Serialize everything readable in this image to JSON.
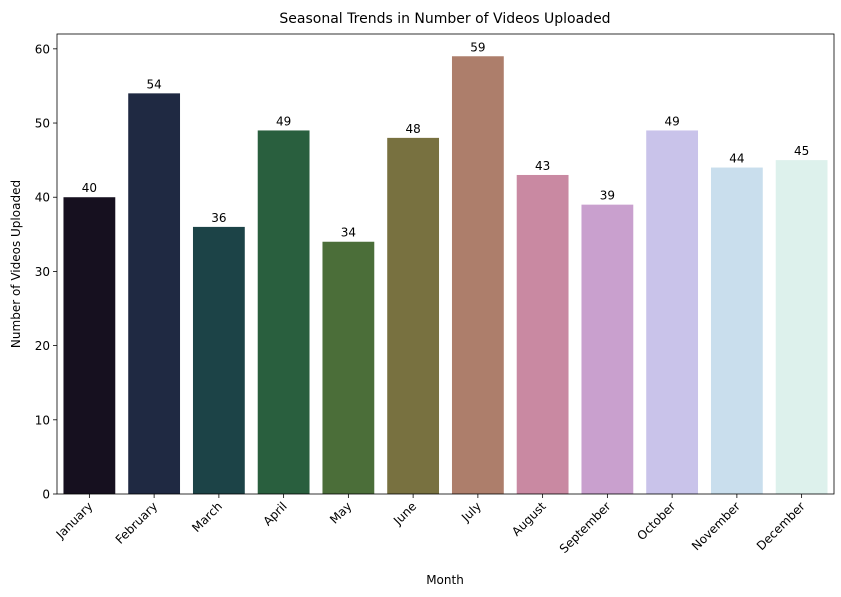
{
  "chart_data": {
    "type": "bar",
    "title": "Seasonal Trends in Number of Videos Uploaded",
    "xlabel": "Month",
    "ylabel": "Number of Videos Uploaded",
    "categories": [
      "January",
      "February",
      "March",
      "April",
      "May",
      "June",
      "July",
      "August",
      "September",
      "October",
      "November",
      "December"
    ],
    "values": [
      40,
      54,
      36,
      49,
      34,
      48,
      59,
      43,
      39,
      49,
      44,
      45
    ],
    "colors": [
      "#16101f",
      "#1f2942",
      "#1c4347",
      "#295f3e",
      "#4b6e39",
      "#787140",
      "#ad7e6b",
      "#c989a2",
      "#c9a0ce",
      "#c9c3ea",
      "#c9deed",
      "#ddf1ec"
    ],
    "ylim": [
      0,
      62
    ],
    "yticks": [
      0,
      10,
      20,
      30,
      40,
      50,
      60
    ],
    "grid": false,
    "legend": "none"
  }
}
